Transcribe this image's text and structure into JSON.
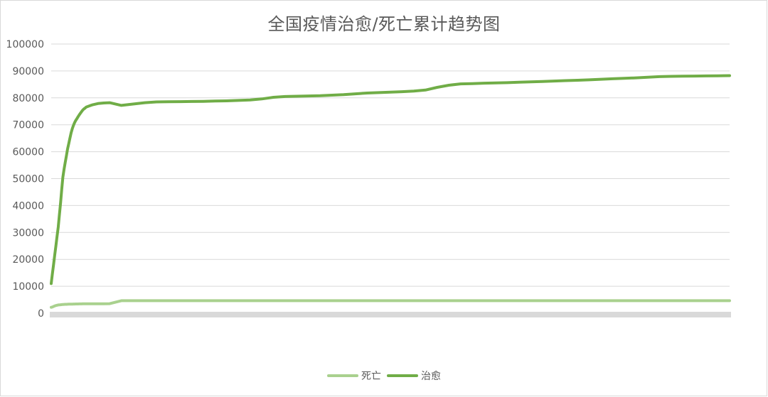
{
  "chart_data": {
    "type": "line",
    "title": "全国疫情治愈/死亡累计趋势图",
    "xlabel": "",
    "ylabel": "",
    "ylim": [
      0,
      100000
    ],
    "yticks": [
      "100000",
      "90000",
      "80000",
      "70000",
      "60000",
      "50000",
      "40000",
      "30000",
      "20000",
      "10000",
      "0"
    ],
    "ytick_values": [
      100000,
      90000,
      80000,
      70000,
      60000,
      50000,
      40000,
      30000,
      20000,
      10000,
      0
    ],
    "grid": true,
    "legend_position": "bottom",
    "x": [
      0,
      1,
      2,
      3,
      4,
      5,
      6,
      7,
      8,
      9,
      10,
      11,
      12,
      13,
      14,
      15,
      16,
      17,
      18,
      19,
      20,
      21,
      22,
      23,
      24,
      25,
      26,
      27,
      28,
      29,
      30,
      35,
      40,
      45,
      50,
      60,
      70,
      80,
      90,
      100,
      110,
      120,
      130,
      140,
      150,
      160,
      170,
      180,
      190,
      200,
      210,
      220,
      230,
      240,
      250,
      260,
      270,
      280,
      290,
      300,
      310,
      320,
      330,
      340,
      350,
      360,
      370,
      380,
      390,
      400,
      410,
      420,
      430,
      440,
      450,
      460,
      470,
      480,
      490,
      500,
      510,
      520,
      530,
      540,
      550,
      560,
      570,
      580
    ],
    "series": [
      {
        "name": "死亡",
        "color": "#a9d18e",
        "values": [
          2200,
          2300,
          2500,
          2700,
          2850,
          2950,
          3050,
          3100,
          3150,
          3200,
          3250,
          3270,
          3290,
          3310,
          3330,
          3350,
          3370,
          3380,
          3390,
          3400,
          3410,
          3420,
          3430,
          3440,
          3450,
          3460,
          3465,
          3470,
          3475,
          3480,
          3490,
          3500,
          3510,
          3520,
          3530,
          4640,
          4640,
          4640,
          4640,
          4640,
          4640,
          4640,
          4640,
          4640,
          4640,
          4640,
          4640,
          4640,
          4640,
          4640,
          4640,
          4640,
          4640,
          4640,
          4640,
          4640,
          4640,
          4640,
          4640,
          4640,
          4640,
          4640,
          4640,
          4640,
          4640,
          4640,
          4640,
          4640,
          4640,
          4640,
          4640,
          4640,
          4640,
          4640,
          4640,
          4640,
          4640,
          4640,
          4640,
          4640,
          4640,
          4640,
          4640,
          4640,
          4640,
          4640,
          4640,
          4640
        ]
      },
      {
        "name": "治愈",
        "color": "#70ad47",
        "values": [
          11000,
          14500,
          18000,
          21500,
          25000,
          28500,
          32000,
          36500,
          41000,
          46000,
          50500,
          53500,
          56000,
          58500,
          61000,
          63000,
          65000,
          67000,
          68500,
          69800,
          70800,
          71600,
          72300,
          73000,
          73700,
          74300,
          74900,
          75500,
          75900,
          76200,
          76600,
          77400,
          77900,
          78100,
          78200,
          77200,
          77700,
          78200,
          78500,
          78550,
          78600,
          78650,
          78700,
          78800,
          78900,
          79050,
          79200,
          79600,
          80200,
          80500,
          80600,
          80700,
          80800,
          81000,
          81200,
          81500,
          81800,
          81950,
          82100,
          82300,
          82500,
          82900,
          83900,
          84700,
          85200,
          85300,
          85450,
          85550,
          85650,
          85800,
          85950,
          86100,
          86250,
          86400,
          86550,
          86700,
          86900,
          87100,
          87250,
          87450,
          87650,
          87900,
          88000,
          88050,
          88100,
          88150,
          88200,
          88250
        ]
      }
    ]
  }
}
